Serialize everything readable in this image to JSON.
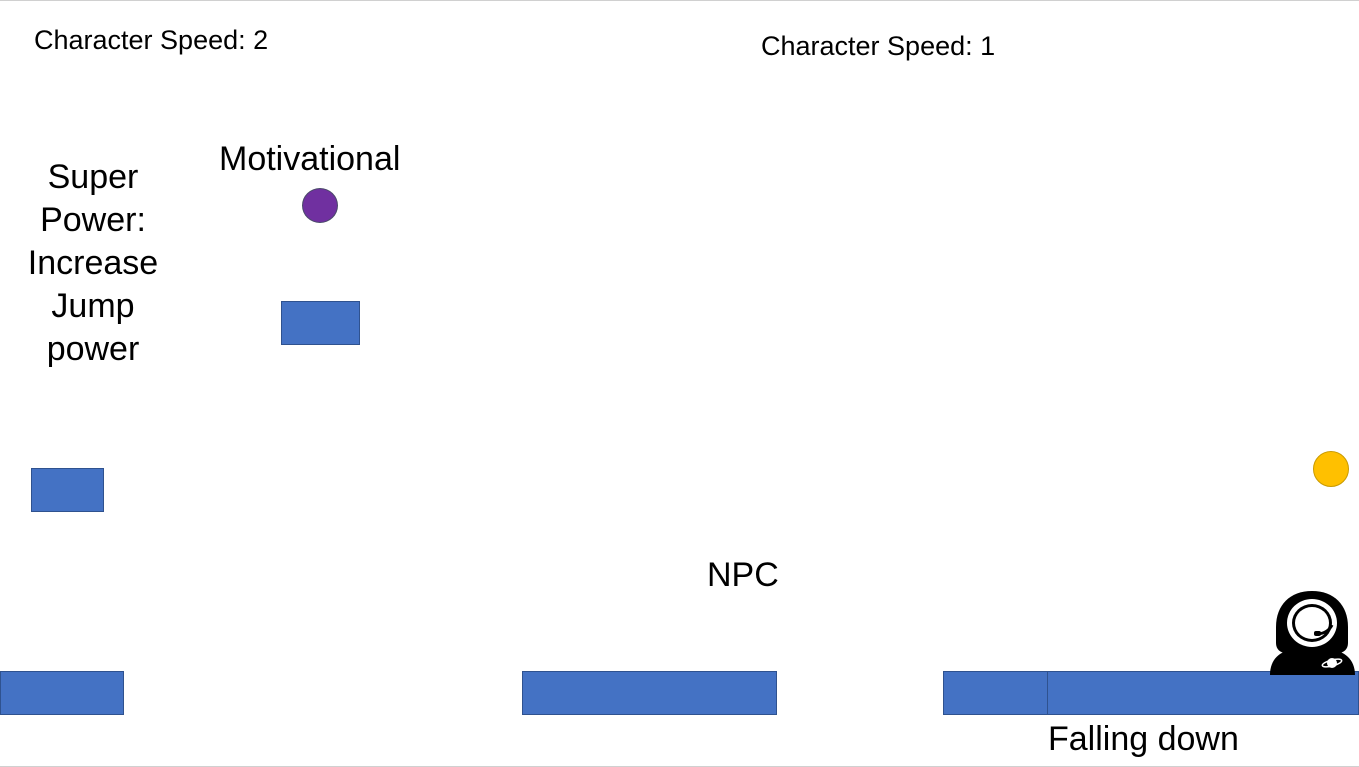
{
  "hud": {
    "left_speed": "Character Speed: 2",
    "right_speed": "Character Speed: 1"
  },
  "labels": {
    "super_power_lines": [
      "Super",
      "Power:",
      "Increase",
      "Jump",
      "power"
    ],
    "motivational": "Motivational",
    "npc": "NPC",
    "falling_down": "Falling down"
  },
  "colors": {
    "platform": "#4472c4",
    "platform_border": "#2f528f",
    "motivational_orb": "#7030a0",
    "gold_orb": "#ffc000"
  },
  "icons": {
    "player": "astronaut-icon"
  }
}
